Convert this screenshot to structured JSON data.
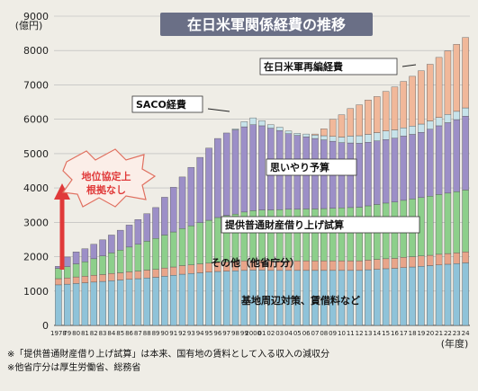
{
  "chart_data": {
    "type": "bar",
    "stacked": true,
    "title": "在日米軍関係経費の推移",
    "yunit": "(億円)",
    "xunit": "(年度)",
    "ylim": [
      0,
      9000
    ],
    "yticks": [
      0,
      1000,
      2000,
      3000,
      4000,
      5000,
      6000,
      7000,
      8000,
      9000
    ],
    "grid": true,
    "x_tick_labels": [
      "1978",
      "79",
      "80",
      "81",
      "82",
      "83",
      "84",
      "85",
      "86",
      "87",
      "88",
      "89",
      "90",
      "91",
      "92",
      "93",
      "94",
      "95",
      "96",
      "97",
      "98",
      "99",
      "2000",
      "01",
      "02",
      "03",
      "04",
      "05",
      "06",
      "07",
      "08",
      "09",
      "10",
      "11",
      "12",
      "13",
      "14",
      "15",
      "16",
      "17",
      "18",
      "19",
      "20",
      "21",
      "22",
      "23",
      "24"
    ],
    "series": [
      {
        "name": "基地周辺対策、賃借料など",
        "color": "#8fc3d9",
        "values": [
          1180,
          1200,
          1220,
          1240,
          1260,
          1280,
          1300,
          1320,
          1340,
          1360,
          1380,
          1400,
          1430,
          1460,
          1490,
          1510,
          1530,
          1550,
          1570,
          1580,
          1590,
          1600,
          1610,
          1610,
          1600,
          1600,
          1600,
          1600,
          1600,
          1600,
          1600,
          1600,
          1600,
          1600,
          1600,
          1620,
          1630,
          1650,
          1660,
          1680,
          1700,
          1720,
          1740,
          1760,
          1780,
          1800,
          1820
        ]
      },
      {
        "name": "その他（他省庁分）",
        "color": "#e8a58a",
        "values": [
          180,
          180,
          190,
          190,
          200,
          200,
          210,
          210,
          220,
          220,
          230,
          230,
          240,
          240,
          250,
          250,
          260,
          260,
          270,
          270,
          270,
          280,
          280,
          280,
          280,
          280,
          280,
          280,
          280,
          280,
          280,
          280,
          280,
          280,
          280,
          280,
          290,
          290,
          290,
          300,
          300,
          300,
          300,
          310,
          310,
          310,
          320
        ]
      },
      {
        "name": "提供普通財産借り上げ試算",
        "color": "#8dcf8b",
        "values": [
          300,
          330,
          380,
          420,
          480,
          540,
          600,
          660,
          720,
          780,
          840,
          900,
          960,
          1020,
          1080,
          1140,
          1200,
          1250,
          1300,
          1350,
          1380,
          1420,
          1450,
          1470,
          1480,
          1490,
          1500,
          1500,
          1510,
          1510,
          1520,
          1530,
          1540,
          1550,
          1560,
          1580,
          1600,
          1620,
          1640,
          1660,
          1680,
          1700,
          1720,
          1740,
          1760,
          1780,
          1800
        ]
      },
      {
        "name": "思いやり予算",
        "color": "#9c8fc7",
        "values": [
          60,
          280,
          350,
          380,
          420,
          470,
          520,
          580,
          640,
          720,
          800,
          900,
          1100,
          1300,
          1500,
          1700,
          1900,
          2100,
          2300,
          2400,
          2450,
          2480,
          2500,
          2450,
          2380,
          2300,
          2200,
          2150,
          2100,
          2050,
          2000,
          1950,
          1900,
          1880,
          1860,
          1850,
          1850,
          1850,
          1860,
          1870,
          1880,
          1900,
          1950,
          2000,
          2050,
          2100,
          2150
        ]
      },
      {
        "name": "SACO経費",
        "color": "#c7e3ea",
        "values": [
          0,
          0,
          0,
          0,
          0,
          0,
          0,
          0,
          0,
          0,
          0,
          0,
          0,
          0,
          0,
          0,
          0,
          0,
          0,
          0,
          30,
          150,
          200,
          150,
          100,
          100,
          80,
          60,
          80,
          100,
          120,
          140,
          160,
          200,
          220,
          230,
          240,
          250,
          240,
          240,
          240,
          240,
          240,
          240,
          240,
          240,
          240
        ]
      },
      {
        "name": "在日米軍再編経費",
        "color": "#f1b89a",
        "values": [
          0,
          0,
          0,
          0,
          0,
          0,
          0,
          0,
          0,
          0,
          0,
          0,
          0,
          0,
          0,
          0,
          0,
          0,
          0,
          0,
          0,
          0,
          0,
          0,
          0,
          0,
          0,
          0,
          0,
          30,
          200,
          500,
          650,
          800,
          900,
          1000,
          1050,
          1150,
          1250,
          1350,
          1450,
          1550,
          1650,
          1750,
          1850,
          1950,
          2050
        ]
      }
    ],
    "annotations": {
      "arrow_label": "地位協定上\n根拠なし",
      "notes": [
        "※「提供普通財産借り上げ試算」は本来、国有地の賃料として入る収入の減収分",
        "※他省庁分は厚生労働省、総務省"
      ]
    }
  }
}
